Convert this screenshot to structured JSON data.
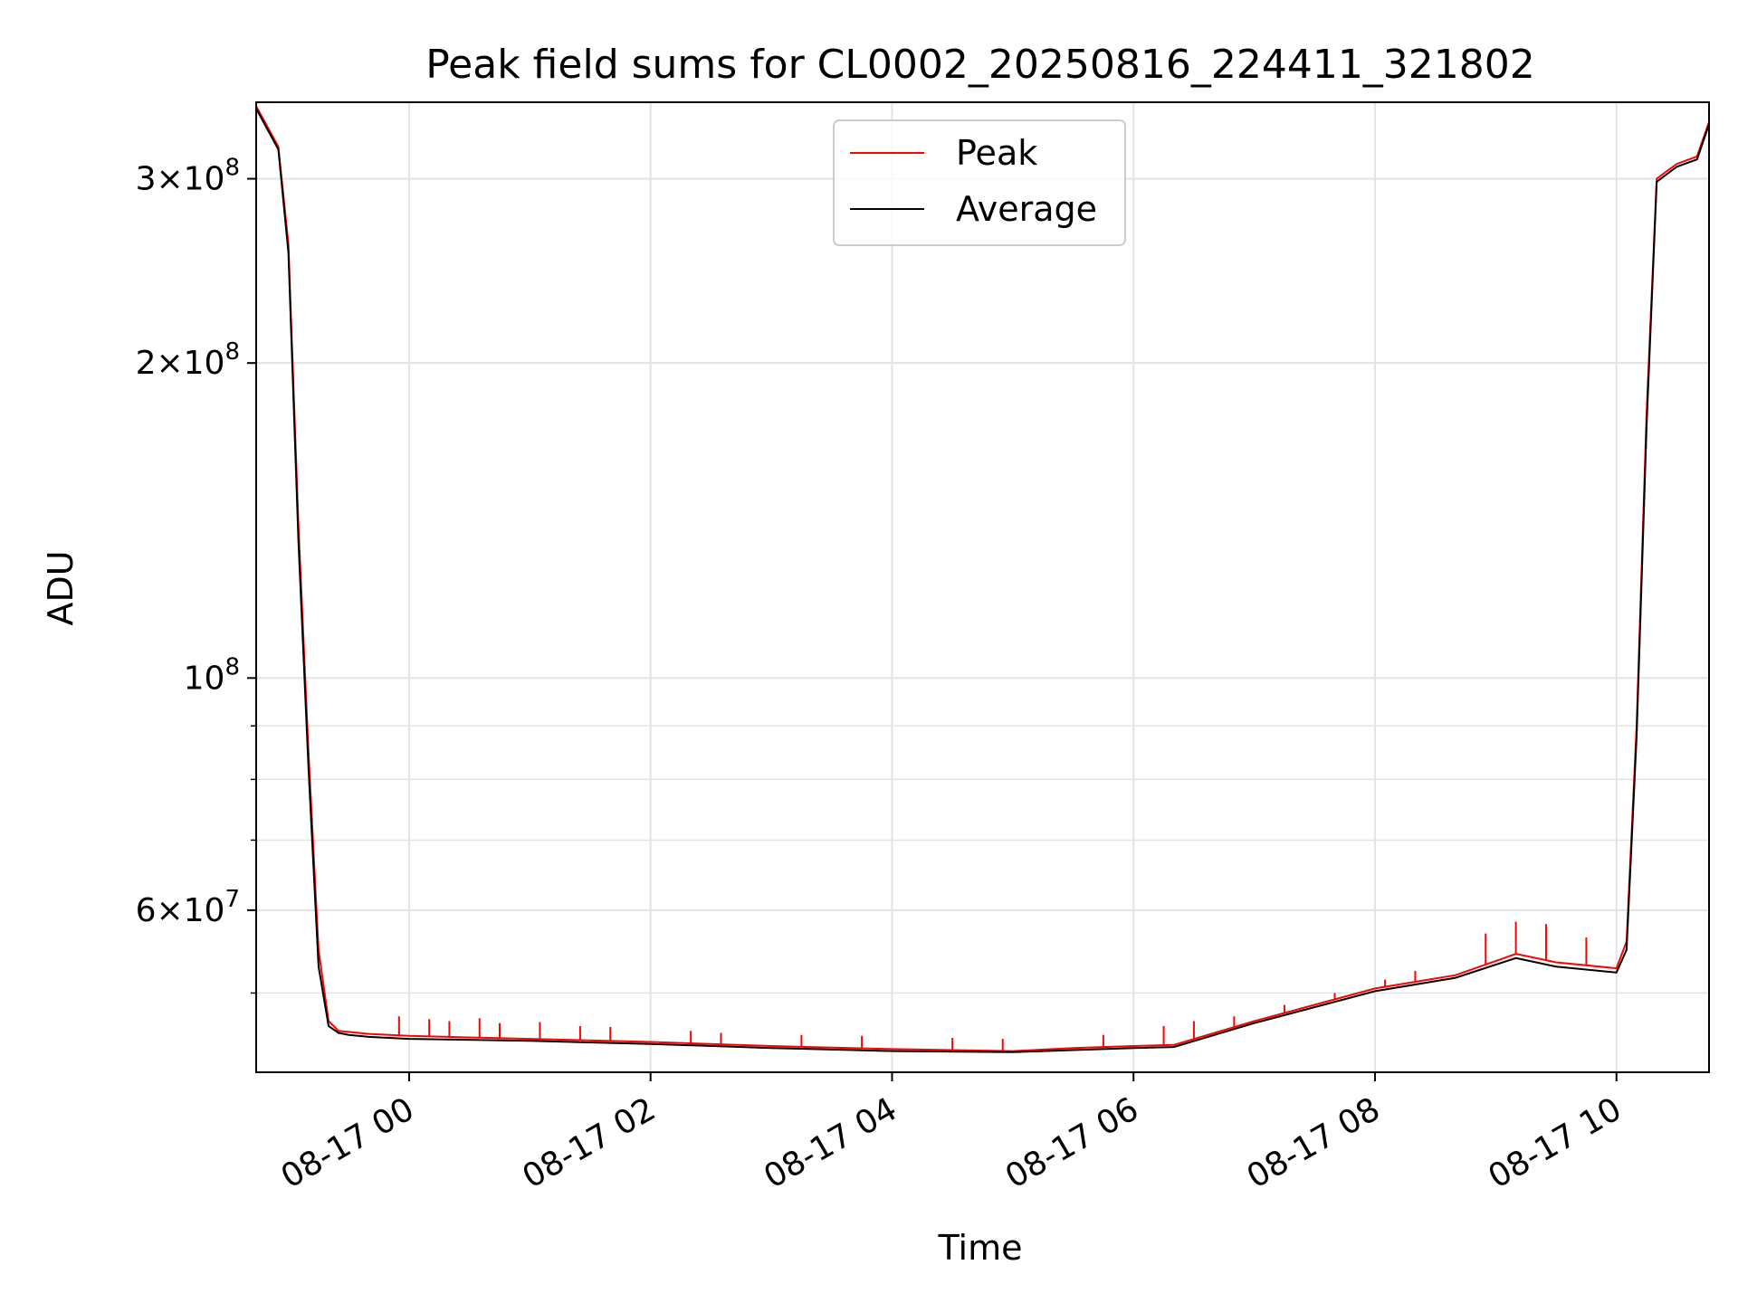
{
  "chart_data": {
    "type": "line",
    "title": "Peak field sums for CL0002_20250816_224411_321802",
    "xlabel": "Time",
    "ylabel": "ADU",
    "yscale": "log",
    "ylim": [
      42000000,
      355000000
    ],
    "xlim": [
      "2025-08-16 22:44",
      "2025-08-17 10:46"
    ],
    "x_ticks": [
      {
        "value": "2025-08-17 00:00",
        "label": "08-17 00"
      },
      {
        "value": "2025-08-17 02:00",
        "label": "08-17 02"
      },
      {
        "value": "2025-08-17 04:00",
        "label": "08-17 04"
      },
      {
        "value": "2025-08-17 06:00",
        "label": "08-17 06"
      },
      {
        "value": "2025-08-17 08:00",
        "label": "08-17 08"
      },
      {
        "value": "2025-08-17 10:00",
        "label": "08-17 10"
      }
    ],
    "y_ticks": [
      {
        "value": 60000000,
        "mantissa": "6",
        "exponent": "7",
        "label": "6×10^7"
      },
      {
        "value": 100000000,
        "mantissa": "",
        "exponent": "8",
        "label": "10^8"
      },
      {
        "value": 200000000,
        "mantissa": "2",
        "exponent": "8",
        "label": "2×10^8"
      },
      {
        "value": 300000000,
        "mantissa": "3",
        "exponent": "8",
        "label": "3×10^8"
      }
    ],
    "y_minor_ticks": [
      50000000,
      70000000,
      80000000,
      90000000
    ],
    "grid": true,
    "legend": {
      "position": "top-center"
    },
    "series": [
      {
        "name": "Peak",
        "color": "#ff0000",
        "x": [
          "2025-08-16 22:44",
          "2025-08-16 22:55",
          "2025-08-16 23:00",
          "2025-08-16 23:05",
          "2025-08-16 23:10",
          "2025-08-16 23:15",
          "2025-08-16 23:20",
          "2025-08-16 23:25",
          "2025-08-16 23:30",
          "2025-08-16 23:40",
          "2025-08-17 00:00",
          "2025-08-17 01:00",
          "2025-08-17 02:00",
          "2025-08-17 03:00",
          "2025-08-17 04:00",
          "2025-08-17 05:00",
          "2025-08-17 05:30",
          "2025-08-17 06:00",
          "2025-08-17 06:20",
          "2025-08-17 07:00",
          "2025-08-17 08:00",
          "2025-08-17 08:40",
          "2025-08-17 09:10",
          "2025-08-17 09:30",
          "2025-08-17 10:00",
          "2025-08-17 10:05",
          "2025-08-17 10:10",
          "2025-08-17 10:15",
          "2025-08-17 10:20",
          "2025-08-17 10:25",
          "2025-08-17 10:30",
          "2025-08-17 10:40",
          "2025-08-17 10:46"
        ],
        "y": [
          352000000,
          322000000,
          260000000,
          140000000,
          85000000,
          55000000,
          47000000,
          46000000,
          45900000,
          45700000,
          45500000,
          45200000,
          44900000,
          44500000,
          44200000,
          44000000,
          44300000,
          44500000,
          44600000,
          47000000,
          50500000,
          52000000,
          54500000,
          53500000,
          52800000,
          56000000,
          90000000,
          180000000,
          300000000,
          305000000,
          310000000,
          315000000,
          340000000
        ],
        "spikes_x": [
          "2025-08-16 23:55",
          "2025-08-17 00:10",
          "2025-08-17 00:20",
          "2025-08-17 00:35",
          "2025-08-17 00:45",
          "2025-08-17 01:05",
          "2025-08-17 01:25",
          "2025-08-17 01:40",
          "2025-08-17 02:20",
          "2025-08-17 02:35",
          "2025-08-17 03:15",
          "2025-08-17 03:45",
          "2025-08-17 04:30",
          "2025-08-17 04:55",
          "2025-08-17 05:45",
          "2025-08-17 06:15",
          "2025-08-17 06:30",
          "2025-08-17 06:50",
          "2025-08-17 07:15",
          "2025-08-17 07:40",
          "2025-08-17 08:05",
          "2025-08-17 08:20",
          "2025-08-17 08:55",
          "2025-08-17 09:10",
          "2025-08-17 09:25",
          "2025-08-17 09:45"
        ],
        "spikes_y": [
          47500000,
          47200000,
          47000000,
          47300000,
          46800000,
          46900000,
          46500000,
          46400000,
          46000000,
          45800000,
          45600000,
          45500000,
          45300000,
          45200000,
          45600000,
          46500000,
          47000000,
          47500000,
          48700000,
          50000000,
          51500000,
          52500000,
          57000000,
          58500000,
          58200000,
          56500000
        ]
      },
      {
        "name": "Average",
        "color": "#000000",
        "x": [
          "2025-08-16 22:44",
          "2025-08-16 22:55",
          "2025-08-16 23:00",
          "2025-08-16 23:05",
          "2025-08-16 23:10",
          "2025-08-16 23:15",
          "2025-08-16 23:20",
          "2025-08-16 23:25",
          "2025-08-16 23:30",
          "2025-08-16 23:40",
          "2025-08-17 00:00",
          "2025-08-17 01:00",
          "2025-08-17 02:00",
          "2025-08-17 03:00",
          "2025-08-17 04:00",
          "2025-08-17 05:00",
          "2025-08-17 05:30",
          "2025-08-17 06:00",
          "2025-08-17 06:20",
          "2025-08-17 07:00",
          "2025-08-17 08:00",
          "2025-08-17 08:40",
          "2025-08-17 09:10",
          "2025-08-17 09:30",
          "2025-08-17 10:00",
          "2025-08-17 10:05",
          "2025-08-17 10:10",
          "2025-08-17 10:15",
          "2025-08-17 10:20",
          "2025-08-17 10:25",
          "2025-08-17 10:30",
          "2025-08-17 10:40",
          "2025-08-17 10:46"
        ],
        "y": [
          350000000,
          320000000,
          255000000,
          135000000,
          82000000,
          53000000,
          46500000,
          45800000,
          45600000,
          45400000,
          45200000,
          45000000,
          44700000,
          44300000,
          44000000,
          43900000,
          44100000,
          44300000,
          44400000,
          46800000,
          50200000,
          51700000,
          54000000,
          53000000,
          52300000,
          55000000,
          88000000,
          175000000,
          298000000,
          303000000,
          308000000,
          313000000,
          338000000
        ]
      }
    ]
  }
}
